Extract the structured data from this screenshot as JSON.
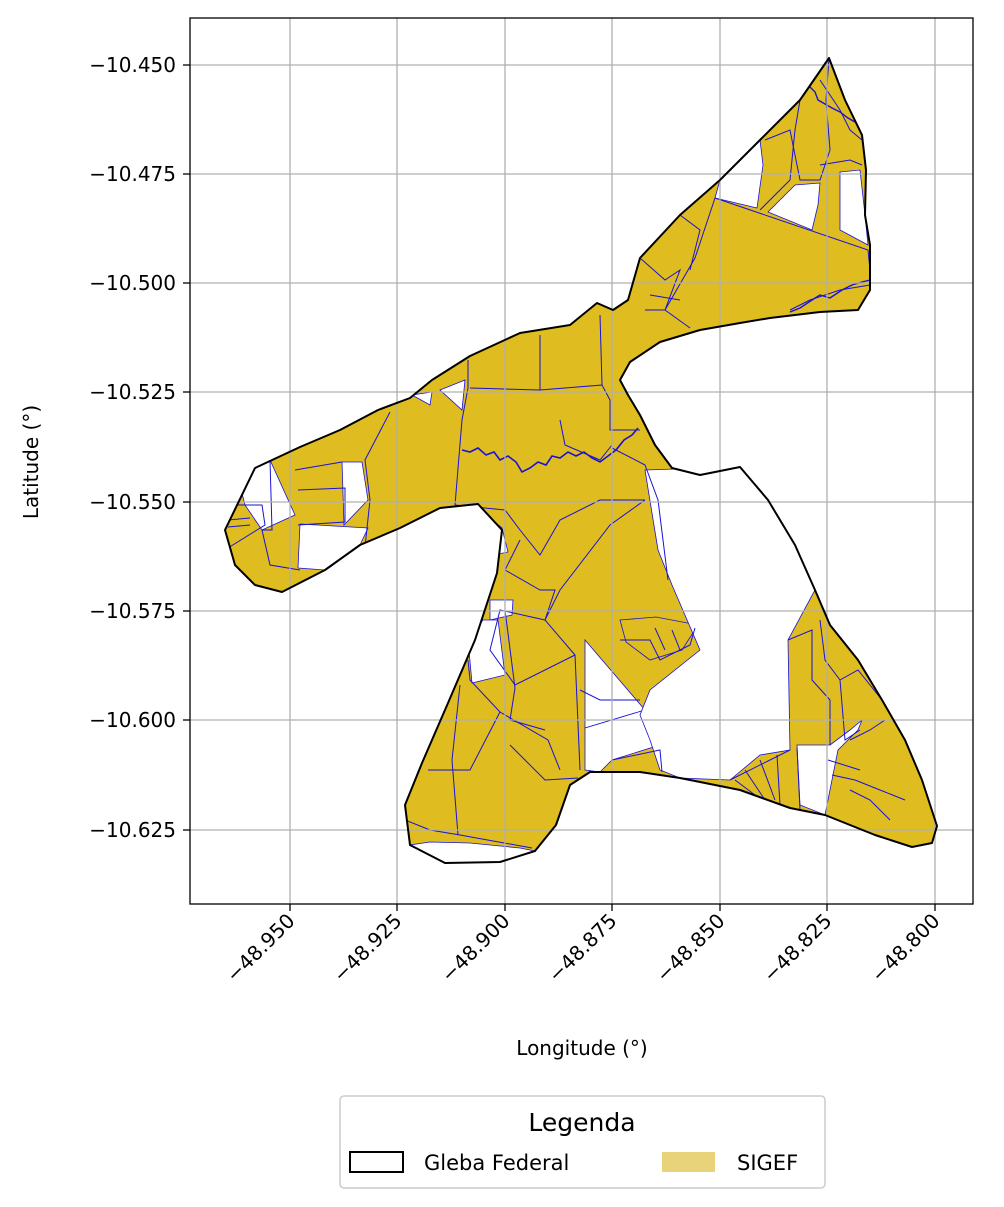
{
  "map": {
    "xlabel": "Longitude (°)",
    "ylabel": "Latitude (°)",
    "grid": true,
    "x_ticks": [
      "−48.950",
      "−48.925",
      "−48.900",
      "−48.875",
      "−48.850",
      "−48.825",
      "−48.800"
    ],
    "y_ticks": [
      "−10.450",
      "−10.475",
      "−10.500",
      "−10.525",
      "−10.550",
      "−10.575",
      "−10.600",
      "−10.625"
    ],
    "colors": {
      "gleba_outline": "#000000",
      "sigef_fill": "#dfbc1f",
      "sigef_edge": "#1a12d6",
      "grid": "#b0b0b0",
      "legend_sigef_swatch": "#e8d27a"
    },
    "legend": {
      "title": "Legenda",
      "placement": "bottom-center",
      "items": [
        {
          "label": "Gleba Federal"
        },
        {
          "label": "SIGEF"
        }
      ]
    }
  }
}
